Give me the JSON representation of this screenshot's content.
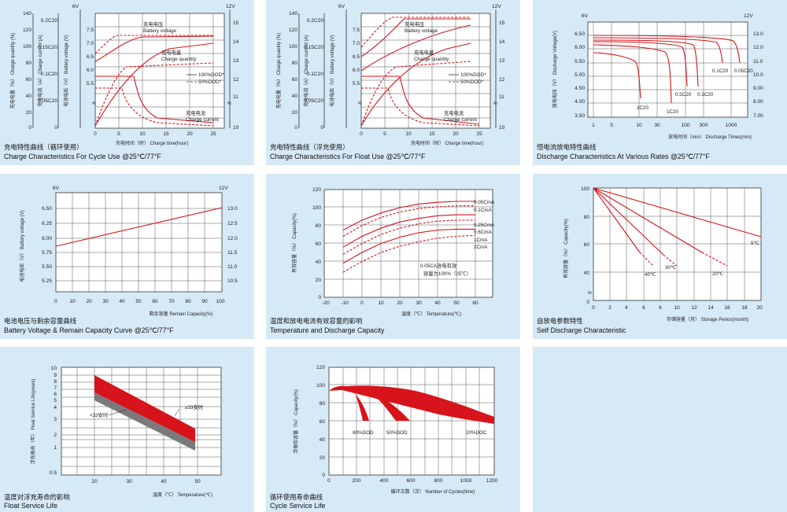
{
  "colors": {
    "panel_bg": "#d6e9f7",
    "plot_bg": "#ffffff",
    "grid": "#3a3a3a",
    "curve": "#d7141b",
    "band_gray": "#7a7a7a"
  },
  "panels": [
    {
      "caption_zh": "充电特性曲线（循环使用）",
      "caption_en": "Charge Characteristics For Cycle Use @25℃/77°F"
    },
    {
      "caption_zh": "充电特性曲线（浮充使用）",
      "caption_en": "Charge Characteristics For Float Use @25℃/77°F"
    },
    {
      "caption_zh": "恒电流放电特性曲线",
      "caption_en": "Discharge Characteristics At Various Rates @25℃/77°F"
    },
    {
      "caption_zh": "电池电压与剩余容量曲线",
      "caption_en": "Battery Voltage & Remain Capacity Curve @25℃/77°F"
    },
    {
      "caption_zh": "温度和放电电流有效容量的影响",
      "caption_en": "Temperature and Discharge Capacity"
    },
    {
      "caption_zh": "自放电参数特性",
      "caption_en": "Self Discharge Characteristic"
    },
    {
      "caption_zh": "温度对浮充寿命的影响",
      "caption_en": "Float Service Life"
    },
    {
      "caption_zh": "循环使用寿命曲线",
      "caption_en": "Cycle Service Life"
    }
  ],
  "chart_data": [
    {
      "type": "line",
      "title": "Charge Characteristics For Cycle Use @25℃/77°F",
      "xlabel": "充电时间（时） Charge time(hour)",
      "x_ticks": [
        "0",
        "5",
        "10",
        "15",
        "20",
        "25"
      ],
      "xlim": [
        0,
        27
      ],
      "axes": [
        {
          "label": "充电电量（%） Charge quantity (%)",
          "ticks": [
            "0",
            "20",
            "40",
            "60",
            "80",
            "100",
            "120",
            "140"
          ]
        },
        {
          "label": "充电电流（A） Charge current (A)",
          "ticks": [
            "0",
            "0.05C20",
            "0.1C20",
            "0.15C20",
            "0.2C20"
          ]
        },
        {
          "label": "电池电压（V） Battery voltage (V)",
          "top_label": "6V",
          "ticks": [
            "5.5",
            "6.0",
            "6.5",
            "7.0",
            "7.5"
          ]
        },
        {
          "top_label": "12V",
          "ticks": [
            "10",
            "11",
            "12",
            "13",
            "14",
            "15"
          ]
        }
      ],
      "annotations": [
        "充电电压",
        "Battery voltage",
        "充电电量",
        "Charge quantity",
        "充电电流",
        "Charge current"
      ],
      "legend": [
        "100%DOD*",
        "50%DOD*"
      ],
      "series": [
        {
          "name": "100%DOD*",
          "x": [
            0,
            1,
            3,
            5,
            7,
            9,
            12,
            16,
            20,
            24
          ],
          "y": [
            6.08,
            6.2,
            6.4,
            6.6,
            6.9,
            7.2,
            7.3,
            7.35,
            7.37,
            7.38
          ]
        },
        {
          "name": "50%DOD*",
          "x": [
            0,
            1,
            3,
            5,
            6,
            7,
            24
          ],
          "y": [
            6.25,
            6.5,
            6.8,
            7.15,
            7.35,
            7.4,
            7.4
          ]
        }
      ]
    },
    {
      "type": "line",
      "title": "Charge Characteristics For Float Use @25℃/77°F",
      "xlabel": "充电时间（时） Charge time(hour)",
      "x_ticks": [
        "0",
        "5",
        "10",
        "15",
        "20",
        "25"
      ],
      "xlim": [
        0,
        27
      ],
      "axes": [
        {
          "label": "充电电量（%） Charge quantity (%)",
          "ticks": [
            "0",
            "20",
            "40",
            "60",
            "80",
            "100",
            "120",
            "140"
          ]
        },
        {
          "label": "充电电流（A） Charge current (A)",
          "ticks": [
            "0",
            "0.05C20",
            "0.1C20",
            "0.15C20",
            "0.2C20"
          ]
        },
        {
          "label": "电池电压（V） Battery voltage (V)",
          "top_label": "6V",
          "ticks": [
            "5.5",
            "6.0",
            "6.5",
            "7.0",
            "7.5"
          ]
        },
        {
          "top_label": "12V",
          "ticks": [
            "10",
            "11",
            "12",
            "13",
            "14",
            "15"
          ]
        }
      ],
      "annotations": [
        "充电电压",
        "Battery voltage",
        "充电电量",
        "Charge quantity",
        "充电电流",
        "Charge current"
      ],
      "legend": [
        "100%DOD*",
        "50%DOD*"
      ]
    },
    {
      "type": "line",
      "title": "Discharge Characteristics At Various Rates @25℃/77°F",
      "xlabel": "放电时间（min） Discharge Times(min)",
      "ylabel": "放电电压（V） Discharge Voltage(V)",
      "x_scale": "log",
      "x_ticks": [
        "1",
        "3",
        "10",
        "30",
        "100",
        "300",
        "1000"
      ],
      "y_left_label": "6V",
      "y_left_ticks": [
        "3.50",
        "4.00",
        "4.50",
        "5.00",
        "5.50",
        "6.00",
        "6.50"
      ],
      "y_right_label": "12V",
      "y_right_ticks": [
        "7.00",
        "8.00",
        "9.00",
        "10.0",
        "11.0",
        "12.0",
        "13.0"
      ],
      "series": [
        {
          "name": "3C20",
          "x": [
            1,
            3,
            8,
            13,
            15,
            17
          ],
          "y": [
            5.65,
            5.55,
            5.4,
            5.2,
            4.9,
            4.2
          ]
        },
        {
          "name": "1C20",
          "x": [
            1,
            5,
            20,
            38,
            45,
            48
          ],
          "y": [
            5.8,
            5.75,
            5.65,
            5.45,
            5.1,
            4.05
          ]
        },
        {
          "name": "0.5C20",
          "x": [
            1,
            10,
            50,
            85,
            95,
            100
          ],
          "y": [
            5.9,
            5.87,
            5.8,
            5.6,
            5.3,
            4.6
          ]
        },
        {
          "name": "0.3C20",
          "x": [
            1,
            20,
            100,
            160,
            180,
            190
          ],
          "y": [
            5.95,
            5.93,
            5.86,
            5.7,
            5.45,
            4.65
          ]
        },
        {
          "name": "0.1C20",
          "x": [
            1,
            50,
            300,
            500,
            600,
            620
          ],
          "y": [
            6.05,
            6.03,
            5.95,
            5.8,
            5.5,
            5.2
          ]
        },
        {
          "name": "0.05C20",
          "x": [
            1,
            100,
            600,
            1000,
            1200,
            1300
          ],
          "y": [
            6.1,
            6.08,
            6.0,
            5.85,
            5.55,
            5.2
          ]
        }
      ]
    },
    {
      "type": "line",
      "title": "Battery Voltage & Remain Capacity Curve @25℃/77°F",
      "xlabel": "剩余容量 Remain Capacity(%)",
      "ylabel": "电池电压（V） Battery voltage (V)",
      "x_ticks": [
        "0",
        "10",
        "20",
        "30",
        "40",
        "50",
        "60",
        "70",
        "80",
        "90",
        "100"
      ],
      "y_left_label": "6V",
      "y_left_ticks": [
        "5.25",
        "5.50",
        "5.75",
        "6.00",
        "6.25",
        "6.50"
      ],
      "y_right_label": "12V",
      "y_right_ticks": [
        "10.5",
        "11.0",
        "11.5",
        "12.0",
        "12.5",
        "13.0"
      ],
      "series": [
        {
          "x": [
            0,
            100
          ],
          "y": [
            5.85,
            6.5
          ]
        }
      ]
    },
    {
      "type": "line",
      "title": "Temperature and Discharge Capacity",
      "xlabel": "温度（℃） Temperature(℃)",
      "ylabel": "有效容量（%） Capacity(%)",
      "x_ticks": [
        "-20",
        "-10",
        "0",
        "10",
        "20",
        "30",
        "40",
        "50",
        "60"
      ],
      "y_ticks": [
        "0",
        "20",
        "40",
        "60",
        "80",
        "100",
        "120"
      ],
      "annotation": [
        "0.05CA放电有效",
        "容量为100%（25℃）"
      ],
      "series": [
        {
          "name": "0.05CmA",
          "x": [
            -10,
            0,
            10,
            20,
            30,
            40,
            50,
            60
          ],
          "y": [
            75,
            86,
            94,
            100,
            104,
            106,
            107,
            107
          ]
        },
        {
          "name": "0.1CmA",
          "x": [
            -10,
            0,
            10,
            20,
            30,
            40,
            50,
            60
          ],
          "y": [
            68,
            80,
            89,
            95,
            99,
            101,
            102,
            102
          ]
        },
        {
          "name": "0.25CmA",
          "x": [
            -10,
            0,
            10,
            20,
            30,
            40,
            50,
            60
          ],
          "y": [
            56,
            68,
            77,
            84,
            88,
            91,
            92,
            92
          ]
        },
        {
          "name": "0.6CmA",
          "x": [
            -10,
            0,
            10,
            20,
            30,
            40,
            50,
            60
          ],
          "y": [
            48,
            60,
            70,
            77,
            82,
            85,
            86,
            86
          ]
        },
        {
          "name": "1CmA",
          "x": [
            -10,
            0,
            10,
            20,
            30,
            40,
            50,
            60
          ],
          "y": [
            38,
            50,
            60,
            67,
            72,
            75,
            76,
            76
          ]
        },
        {
          "name": "2CmA",
          "x": [
            -10,
            0,
            10,
            20,
            30,
            40,
            50,
            60
          ],
          "y": [
            28,
            40,
            50,
            57,
            62,
            66,
            68,
            69
          ]
        }
      ]
    },
    {
      "type": "line",
      "title": "Self Discharge Characteristic",
      "xlabel": "存储容量（月） Storage Perios(month)",
      "ylabel": "有效容量（%） Capacity(%)",
      "x_ticks": [
        "0",
        "2",
        "4",
        "6",
        "8",
        "10",
        "12",
        "14",
        "16",
        "18",
        "20"
      ],
      "y_ticks": [
        "0",
        "40",
        "60",
        "80",
        "100"
      ],
      "series": [
        {
          "name": "5℃",
          "x": [
            0,
            20
          ],
          "y": [
            100,
            71
          ]
        },
        {
          "name": "20℃",
          "x": [
            0,
            16
          ],
          "y": [
            100,
            60
          ]
        },
        {
          "name": "30℃",
          "x": [
            0,
            10
          ],
          "y": [
            100,
            60
          ]
        },
        {
          "name": "40℃",
          "x": [
            0,
            7
          ],
          "y": [
            100,
            60
          ]
        }
      ]
    },
    {
      "type": "area",
      "title": "Float Service Life",
      "xlabel": "温度（℃） Temperature(℃)",
      "ylabel": "浮充寿命（年） Float Service Life(years)",
      "y_scale": "log",
      "x_ticks": [
        "20",
        "30",
        "40",
        "50"
      ],
      "y_ticks": [
        "0.5",
        "1",
        "2",
        "3",
        "4",
        "5",
        "6",
        "7",
        "8",
        "9",
        "10"
      ],
      "series": [
        {
          "name": "≥33安时",
          "x": [
            20,
            50
          ],
          "upper": [
            8,
            2.1
          ],
          "lower": [
            5.8,
            1.5
          ]
        },
        {
          "name": "<33安时",
          "x": [
            20,
            50
          ],
          "upper": [
            5.8,
            1.5
          ],
          "lower": [
            4.6,
            1.0
          ]
        }
      ]
    },
    {
      "type": "area",
      "title": "Cycle Service Life",
      "xlabel": "循环次数（次） Number of Cycles(time)",
      "ylabel": "浮保存容量（%） Capacity(%)",
      "x_ticks": [
        "0",
        "200",
        "400",
        "600",
        "800",
        "1000",
        "1200"
      ],
      "y_ticks": [
        "0",
        "20",
        "40",
        "60",
        "80",
        "100",
        "120"
      ],
      "series": [
        {
          "name": "80%DOD",
          "x_end": [
            190,
            290
          ]
        },
        {
          "name": "50%DOD",
          "x_end": [
            440,
            600
          ]
        },
        {
          "name": "20%DOC",
          "x_end": [
            1060,
            1300
          ]
        }
      ]
    }
  ]
}
